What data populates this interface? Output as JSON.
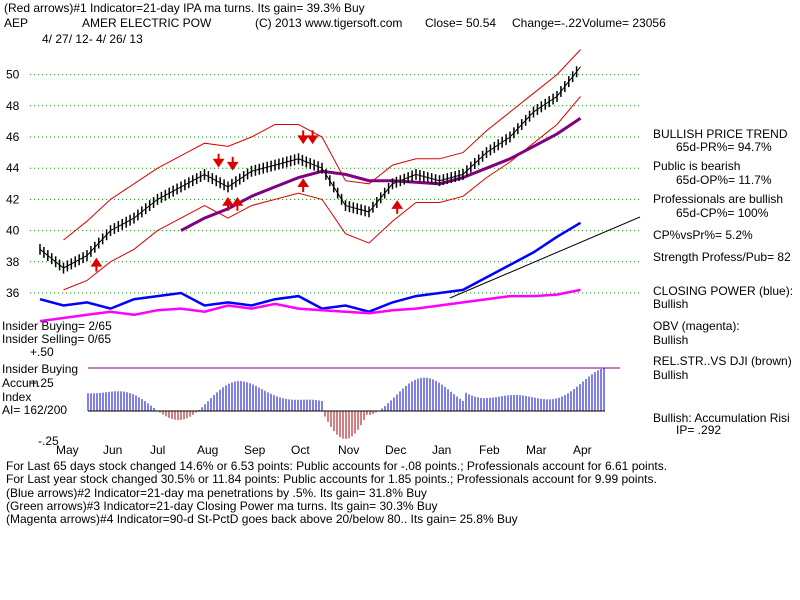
{
  "header": {
    "line1": "(Red arrows)#1 Indicator=21-day IPA ma turns. Its gain= 39.3% Buy",
    "symbol": "AEP",
    "name": "AMER ELECTRIC POW",
    "copyright": "(C) 2013 www.tigersoft.com",
    "close": "Close=  50.54",
    "change": "Change=-.22",
    "volume": "Volume= 23056",
    "dates": "4/ 27/ 12- 4/ 26/ 13"
  },
  "right_panel": {
    "l1": "BULLISH PRICE TREND",
    "l2": "65d-PR%= 94.7%",
    "l3": "Public is bearish",
    "l4": "65d-OP%= 11.7%",
    "l5": "Professionals are bullish",
    "l6": "65d-CP%= 100%",
    "l7": "CP%vsPr%=  5.2%",
    "l8": "Strength Profess/Pub= 82",
    "l9": "CLOSING POWER (blue):",
    "l10": "Bullish",
    "l11": "OBV (magenta):",
    "l12": "Bullish",
    "l13": "REL.STR..VS DJI (brown)",
    "l14": "Bullish",
    "l15": "Bullish: Accumulation Risi",
    "l16": "IP=  .292"
  },
  "left_panel": {
    "insider_buying": "Insider Buying= 2/65",
    "insider_selling": "Insider Selling= 0/65",
    "plus50": "+.50",
    "insider_buying2": "Insider Buying",
    "accum": "Accum",
    "plus25": "+.25",
    "index": "Index",
    "ai": "AI= 162/200",
    "minus25": "-.25"
  },
  "footer": {
    "f1": "For Last 65 days stock changed  14.6% or  6.53 points:  Public accounts for -.08 points.;  Professionals account for  6.61 points.",
    "f2": "For Last year stock changed  30.5% or 11.84 points:  Public accounts for  1.85 points.;  Professionals account for  9.99 points.",
    "f3": "(Blue arrows)#2 Indicator=21-day ma penetrations by .5%. Its gain= 31.8% Buy",
    "f4": "(Green arrows)#3 Indicator=21-day Closing Power ma turns. Its gain= 30.3% Buy",
    "f5": "(Magenta arrows)#4 Indicator=90-d St-PctD goes back above 20/below 80.. Its gain= 25.8% Buy"
  },
  "colors": {
    "price": "#000000",
    "band": "#dd0000",
    "ma": "#800080",
    "closing_power": "#0000ff",
    "obv": "#ff00ff",
    "accum": "#0000cc",
    "rel": "#8b4513",
    "grid": "#00aa00",
    "arrow": "#dd0000"
  },
  "chart_data": {
    "type": "line",
    "title": "AEP  AMER ELECTRIC POW",
    "x_tick_labels": [
      "May",
      "Jun",
      "Jul",
      "Aug",
      "Sep",
      "Oct",
      "Nov",
      "Dec",
      "Jan",
      "Feb",
      "Mar",
      "Apr"
    ],
    "y_tick_labels": [
      "36",
      "38",
      "40",
      "42",
      "44",
      "46",
      "48",
      "50"
    ],
    "ylim": [
      34,
      52
    ],
    "months": [
      "May",
      "Jun",
      "Jul",
      "Aug",
      "Sep",
      "Oct",
      "Nov",
      "Dec",
      "Jan",
      "Feb",
      "Mar",
      "Apr"
    ],
    "x": [
      0,
      0.5,
      1,
      1.5,
      2,
      2.5,
      3,
      3.5,
      4,
      4.5,
      5,
      5.5,
      6,
      6.5,
      7,
      7.5,
      8,
      8.5,
      9,
      9.5,
      10,
      10.5,
      11,
      11.5
    ],
    "series": [
      {
        "name": "Close",
        "values": [
          38.8,
          37.6,
          38.4,
          40.0,
          40.8,
          42.0,
          42.8,
          43.6,
          42.8,
          43.8,
          44.2,
          44.6,
          44.0,
          41.6,
          41.2,
          43.0,
          43.6,
          43.2,
          43.6,
          45.0,
          46.0,
          47.6,
          48.6,
          50.5
        ]
      },
      {
        "name": "Upper band",
        "values": [
          null,
          39.4,
          40.6,
          42.0,
          43.0,
          44.0,
          44.8,
          45.6,
          45.4,
          46.0,
          46.8,
          46.8,
          46.0,
          43.2,
          43.0,
          44.2,
          44.6,
          44.6,
          45.0,
          46.4,
          47.6,
          48.8,
          50.0,
          51.6
        ]
      },
      {
        "name": "Lower band",
        "values": [
          null,
          36.2,
          36.8,
          38.0,
          38.8,
          40.0,
          40.8,
          41.6,
          40.8,
          41.6,
          42.0,
          42.4,
          42.0,
          39.8,
          39.2,
          40.6,
          41.8,
          41.8,
          42.2,
          43.4,
          44.4,
          45.6,
          46.8,
          48.6
        ]
      },
      {
        "name": "Moving average",
        "values": [
          null,
          null,
          null,
          null,
          null,
          null,
          40.0,
          40.8,
          41.4,
          42.2,
          42.8,
          43.4,
          43.8,
          43.6,
          43.2,
          43.2,
          43.1,
          43.0,
          43.4,
          44.0,
          44.6,
          45.4,
          46.2,
          47.2
        ]
      },
      {
        "name": "Closing Power (blue)",
        "values": [
          35.6,
          35.2,
          35.4,
          35.0,
          35.6,
          35.8,
          36.0,
          35.2,
          35.4,
          35.2,
          35.6,
          35.8,
          35.0,
          35.2,
          34.8,
          35.4,
          35.8,
          36.0,
          36.2,
          37.0,
          37.8,
          38.6,
          39.6,
          40.5
        ]
      },
      {
        "name": "OBV (magenta)",
        "values": [
          34.2,
          34.4,
          34.6,
          34.8,
          34.6,
          34.9,
          35.0,
          34.8,
          35.2,
          35.0,
          35.3,
          35.0,
          34.9,
          34.8,
          34.7,
          34.9,
          35.0,
          35.2,
          35.4,
          35.6,
          35.8,
          35.8,
          35.9,
          36.2
        ]
      }
    ]
  }
}
